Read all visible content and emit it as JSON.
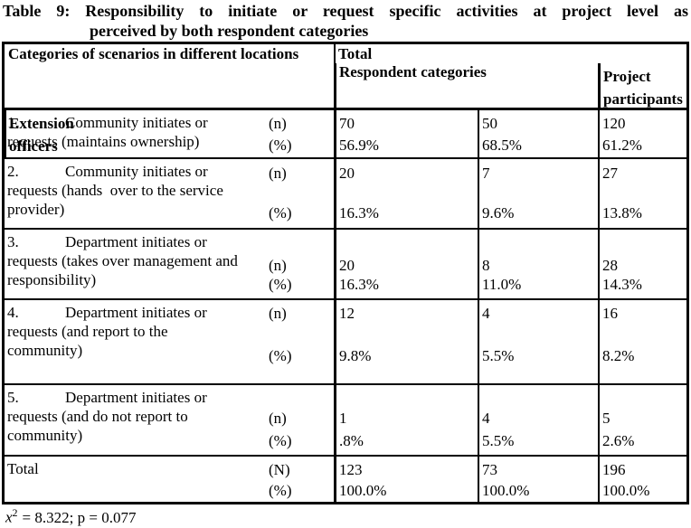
{
  "title": {
    "line1": "Table 9: Responsibility to initiate or request specific activities at project level as",
    "line2": "perceived by both respondent categories"
  },
  "header": {
    "categories_col": "Categories of scenarios in different locations",
    "respondent_group": "Respondent categories",
    "project_participants": "Project\nparticipants",
    "extension_officers": "Extension\nofficers",
    "total": "Total"
  },
  "rows": [
    {
      "num": "1.",
      "category": "Community initiates or\nrequests (maintains ownership)",
      "n_label": "(n)",
      "pct_label": "(%)",
      "pp_n": "70",
      "eo_n": "50",
      "tot_n": "120",
      "pp_pct": "56.9%",
      "eo_pct": "68.5%",
      "tot_pct": "61.2%"
    },
    {
      "num": "2.",
      "category": "Community initiates or\nrequests (hands  over to the service\nprovider)",
      "n_label": "(n)",
      "pct_label": "(%)",
      "pp_n": "20",
      "eo_n": "7",
      "tot_n": "27",
      "pp_pct": "16.3%",
      "eo_pct": "9.6%",
      "tot_pct": "13.8%"
    },
    {
      "num": "3.",
      "category": "Department initiates or\nrequests (takes over management and\nresponsibility)",
      "n_label": "(n)",
      "pct_label": "(%)",
      "pp_n": "20",
      "eo_n": "8",
      "tot_n": "28",
      "pp_pct": "16.3%",
      "eo_pct": "11.0%",
      "tot_pct": "14.3%"
    },
    {
      "num": "4.",
      "category": "Department initiates or\nrequests (and report to the\ncommunity)",
      "n_label": "(n)",
      "pct_label": "(%)",
      "pp_n": "12",
      "eo_n": "4",
      "tot_n": "16",
      "pp_pct": "9.8%",
      "eo_pct": "5.5%",
      "tot_pct": "8.2%"
    },
    {
      "num": "5.",
      "category": "Department initiates or\nrequests (and do not report to\ncommunity)",
      "n_label": "(n)",
      "pct_label": "(%)",
      "pp_n": "1",
      "eo_n": "4",
      "tot_n": "5",
      "pp_pct": ".8%",
      "eo_pct": "5.5%",
      "tot_pct": "2.6%"
    }
  ],
  "total_row": {
    "label": "Total",
    "n_label": "(N)",
    "pct_label": "(%)",
    "pp_n": "123",
    "eo_n": "73",
    "tot_n": "196",
    "pp_pct": "100.0%",
    "eo_pct": "100.0%",
    "tot_pct": "100.0%"
  },
  "footnote": {
    "variable": "x",
    "superscript": "2",
    "rest": "= 8.322; p = 0.077"
  }
}
